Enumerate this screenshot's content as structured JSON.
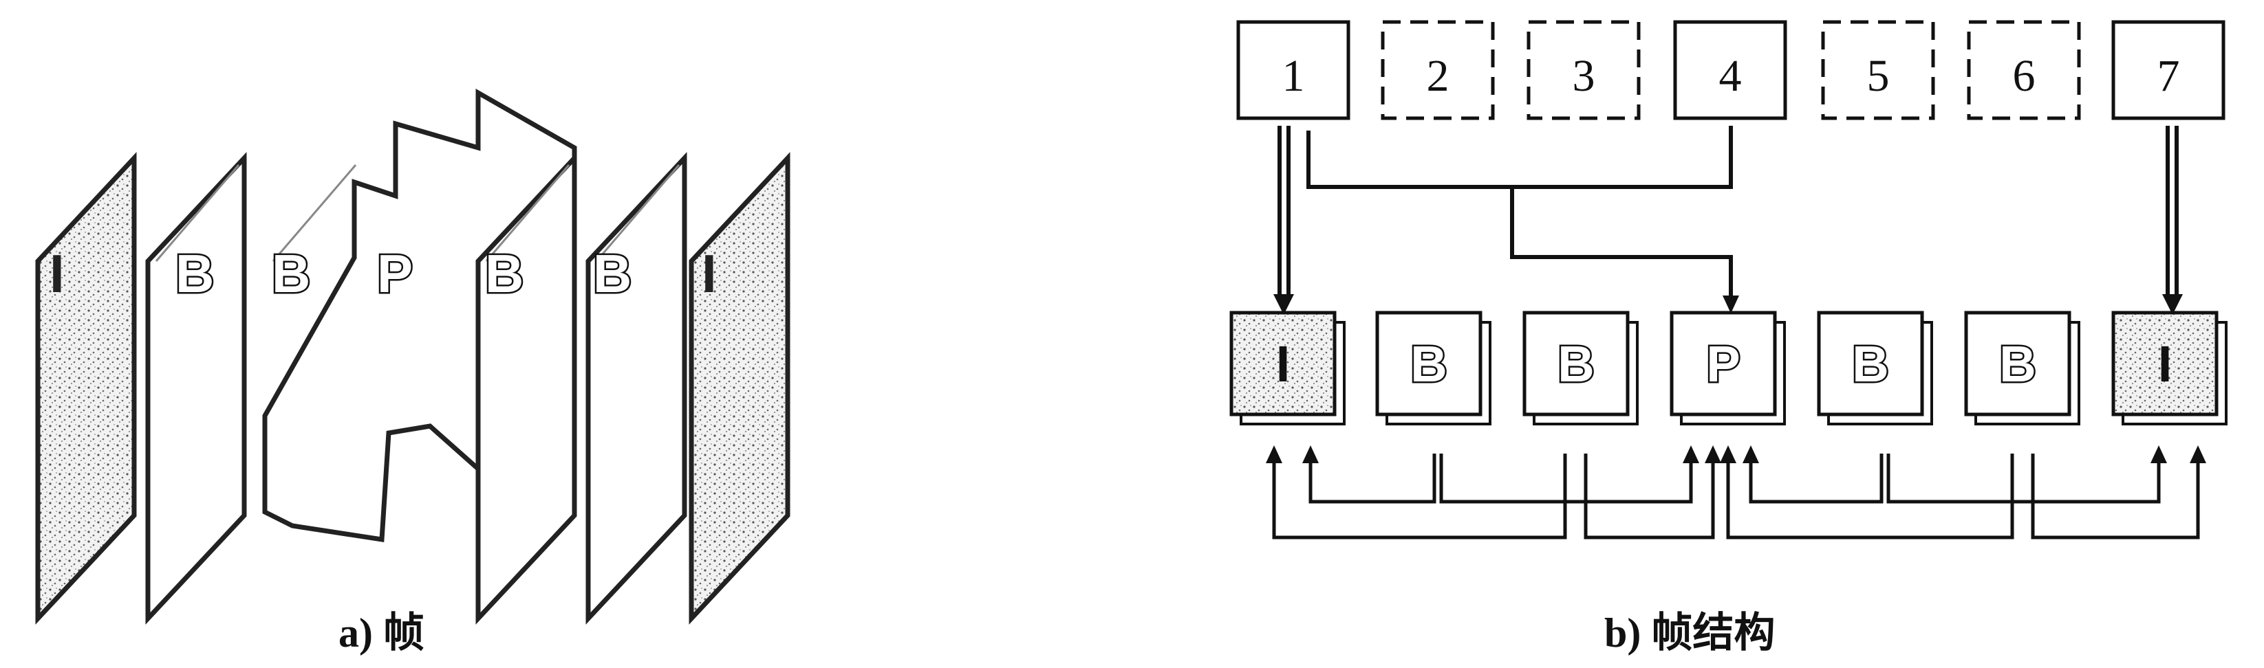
{
  "panel_a": {
    "frames": [
      {
        "type": "I"
      },
      {
        "type": "B"
      },
      {
        "type": "B"
      },
      {
        "type": "P"
      },
      {
        "type": "B"
      },
      {
        "type": "B"
      },
      {
        "type": "I"
      }
    ],
    "caption": "a) 帧"
  },
  "panel_b": {
    "sequence": [
      {
        "number": "1",
        "style": "solid"
      },
      {
        "number": "2",
        "style": "dashed"
      },
      {
        "number": "3",
        "style": "dashed"
      },
      {
        "number": "4",
        "style": "solid"
      },
      {
        "number": "5",
        "style": "dashed"
      },
      {
        "number": "6",
        "style": "dashed"
      },
      {
        "number": "7",
        "style": "solid"
      }
    ],
    "coded_frames": [
      {
        "type": "I"
      },
      {
        "type": "B"
      },
      {
        "type": "B"
      },
      {
        "type": "P"
      },
      {
        "type": "B"
      },
      {
        "type": "B"
      },
      {
        "type": "I"
      }
    ],
    "caption": "b) 帧结构"
  }
}
